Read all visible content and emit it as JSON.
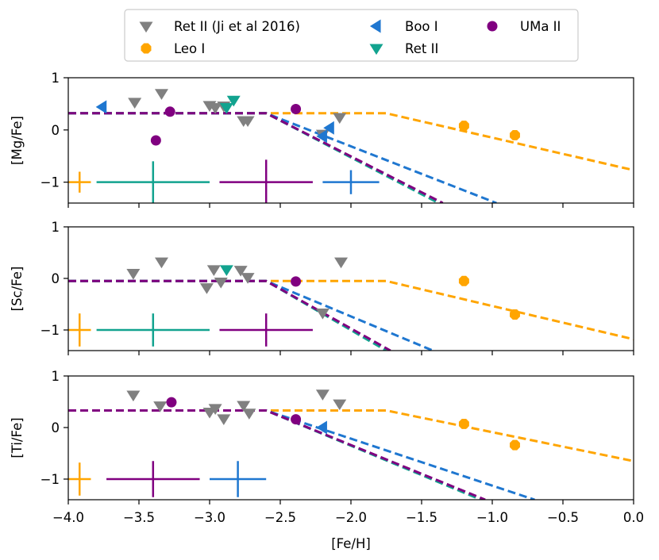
{
  "chart_data": {
    "type": "scatter",
    "xlabel": "[Fe/H]",
    "xlim": [
      -4.0,
      0.0
    ],
    "x_ticks": [
      -4.0,
      -3.5,
      -3.0,
      -2.5,
      -2.0,
      -1.5,
      -1.0,
      -0.5,
      0.0
    ],
    "x_tick_labels": [
      "−4.0",
      "−3.5",
      "−3.0",
      "−2.5",
      "−2.0",
      "−1.5",
      "−1.0",
      "−0.5",
      "0.0"
    ],
    "legend": {
      "placement": "top-center",
      "entries": [
        {
          "series": "ret2_ji",
          "label": "Ret II (Ji et al 2016)",
          "marker": "triangle-down",
          "color": "#808080"
        },
        {
          "series": "leo1",
          "label": "Leo I",
          "marker": "octagon",
          "color": "#ffa500"
        },
        {
          "series": "boo1",
          "label": "Boo I",
          "marker": "triangle-left",
          "color": "#1f77d0"
        },
        {
          "series": "ret2",
          "label": "Ret II",
          "marker": "triangle-down",
          "color": "#12a38f"
        },
        {
          "series": "uma2",
          "label": "UMa II",
          "marker": "circle",
          "color": "#800080"
        }
      ]
    },
    "panels": [
      {
        "ylabel": "[Mg/Fe]",
        "ylim": [
          -1.4,
          1.0
        ],
        "y_ticks": [
          -1,
          0,
          1
        ],
        "y_tick_labels": [
          "−1",
          "0",
          "1"
        ],
        "models": [
          {
            "color": "#ffa500",
            "x": [
              -4.0,
              -1.75,
              0.0
            ],
            "y": [
              0.32,
              0.32,
              -0.77
            ]
          },
          {
            "color": "#1f77d0",
            "x": [
              -4.0,
              -2.6,
              -0.97
            ],
            "y": [
              0.32,
              0.32,
              -1.4
            ]
          },
          {
            "color": "#12a38f",
            "x": [
              -4.0,
              -2.6,
              -1.38
            ],
            "y": [
              0.32,
              0.32,
              -1.4
            ]
          },
          {
            "color": "#800080",
            "x": [
              -4.0,
              -2.6,
              -1.35
            ],
            "y": [
              0.32,
              0.32,
              -1.4
            ]
          }
        ],
        "points": [
          {
            "series": "ret2_ji",
            "x": [
              -3.53,
              -3.34,
              -3.0,
              -2.96,
              -2.9,
              -2.76,
              -2.73,
              -2.2,
              -2.08
            ],
            "y": [
              0.53,
              0.7,
              0.47,
              0.43,
              0.46,
              0.18,
              0.18,
              -0.08,
              0.24
            ]
          },
          {
            "series": "leo1",
            "x": [
              -1.2,
              -0.84
            ],
            "y": [
              0.08,
              -0.1
            ]
          },
          {
            "series": "boo1",
            "x": [
              -3.76,
              -2.2,
              -2.15
            ],
            "y": [
              0.44,
              -0.12,
              0.04
            ]
          },
          {
            "series": "ret2",
            "x": [
              -2.88,
              -2.83
            ],
            "y": [
              0.43,
              0.57
            ]
          },
          {
            "series": "uma2",
            "x": [
              -3.28,
              -3.38,
              -2.39
            ],
            "y": [
              0.35,
              -0.2,
              0.4
            ]
          }
        ],
        "error_bars": [
          {
            "color": "#ffa500",
            "x": -3.92,
            "y": -1.0,
            "xerr": 0.08,
            "yerr": 0.2
          },
          {
            "color": "#12a38f",
            "x": -3.4,
            "y": -1.0,
            "xerr": 0.4,
            "yerr": 0.4
          },
          {
            "color": "#800080",
            "x": -2.6,
            "y": -1.0,
            "xerr": 0.33,
            "yerr": 0.43
          },
          {
            "color": "#1f77d0",
            "x": -2.0,
            "y": -1.0,
            "xerr": 0.2,
            "yerr": 0.23
          }
        ]
      },
      {
        "ylabel": "[Sc/Fe]",
        "ylim": [
          -1.4,
          1.0
        ],
        "y_ticks": [
          -1,
          0,
          1
        ],
        "y_tick_labels": [
          "−1",
          "0",
          "1"
        ],
        "models": [
          {
            "color": "#ffa500",
            "x": [
              -4.0,
              -1.75,
              0.0
            ],
            "y": [
              -0.05,
              -0.05,
              -1.18
            ]
          },
          {
            "color": "#1f77d0",
            "x": [
              -4.0,
              -2.6,
              -1.42
            ],
            "y": [
              -0.05,
              -0.05,
              -1.4
            ]
          },
          {
            "color": "#12a38f",
            "x": [
              -4.0,
              -2.6,
              -1.75
            ],
            "y": [
              -0.05,
              -0.05,
              -1.4
            ]
          },
          {
            "color": "#800080",
            "x": [
              -4.0,
              -2.6,
              -1.72
            ],
            "y": [
              -0.05,
              -0.05,
              -1.4
            ]
          }
        ],
        "points": [
          {
            "series": "ret2_ji",
            "x": [
              -3.54,
              -3.34,
              -3.02,
              -2.97,
              -2.92,
              -2.78,
              -2.73,
              -2.2,
              -2.07
            ],
            "y": [
              0.1,
              0.32,
              -0.18,
              0.17,
              -0.07,
              0.16,
              0.02,
              -0.67,
              0.32
            ]
          },
          {
            "series": "leo1",
            "x": [
              -1.2,
              -0.84
            ],
            "y": [
              -0.05,
              -0.7
            ]
          },
          {
            "series": "ret2",
            "x": [
              -2.88
            ],
            "y": [
              0.17
            ]
          },
          {
            "series": "uma2",
            "x": [
              -2.39
            ],
            "y": [
              -0.06
            ]
          }
        ],
        "error_bars": [
          {
            "color": "#ffa500",
            "x": -3.92,
            "y": -1.0,
            "xerr": 0.08,
            "yerr": 0.32
          },
          {
            "color": "#12a38f",
            "x": -3.4,
            "y": -1.0,
            "xerr": 0.4,
            "yerr": 0.32
          },
          {
            "color": "#800080",
            "x": -2.6,
            "y": -1.0,
            "xerr": 0.33,
            "yerr": 0.32
          }
        ]
      },
      {
        "ylabel": "[Ti/Fe]",
        "ylim": [
          -1.4,
          1.0
        ],
        "y_ticks": [
          -1,
          0,
          1
        ],
        "y_tick_labels": [
          "−1",
          "0",
          "1"
        ],
        "models": [
          {
            "color": "#ffa500",
            "x": [
              -4.0,
              -1.75,
              0.0
            ],
            "y": [
              0.33,
              0.33,
              -0.65
            ]
          },
          {
            "color": "#1f77d0",
            "x": [
              -4.0,
              -2.6,
              -0.7
            ],
            "y": [
              0.33,
              0.33,
              -1.4
            ]
          },
          {
            "color": "#12a38f",
            "x": [
              -4.0,
              -2.6,
              -1.08
            ],
            "y": [
              0.33,
              0.33,
              -1.4
            ]
          },
          {
            "color": "#800080",
            "x": [
              -4.0,
              -2.6,
              -1.05
            ],
            "y": [
              0.33,
              0.33,
              -1.4
            ]
          }
        ],
        "points": [
          {
            "series": "ret2_ji",
            "x": [
              -3.54,
              -3.35,
              -3.0,
              -2.96,
              -2.9,
              -2.76,
              -2.72,
              -2.2,
              -2.08
            ],
            "y": [
              0.63,
              0.42,
              0.3,
              0.37,
              0.17,
              0.43,
              0.28,
              0.65,
              0.46
            ]
          },
          {
            "series": "leo1",
            "x": [
              -1.2,
              -0.84
            ],
            "y": [
              0.07,
              -0.34
            ]
          },
          {
            "series": "boo1",
            "x": [
              -2.2
            ],
            "y": [
              0.0
            ]
          },
          {
            "series": "uma2",
            "x": [
              -3.27,
              -2.39
            ],
            "y": [
              0.49,
              0.16
            ]
          }
        ],
        "error_bars": [
          {
            "color": "#ffa500",
            "x": -3.92,
            "y": -1.0,
            "xerr": 0.08,
            "yerr": 0.32
          },
          {
            "color": "#800080",
            "x": -3.4,
            "y": -1.0,
            "xerr": 0.33,
            "yerr": 0.35
          },
          {
            "color": "#1f77d0",
            "x": -2.8,
            "y": -1.0,
            "xerr": 0.2,
            "yerr": 0.35
          }
        ]
      }
    ]
  }
}
